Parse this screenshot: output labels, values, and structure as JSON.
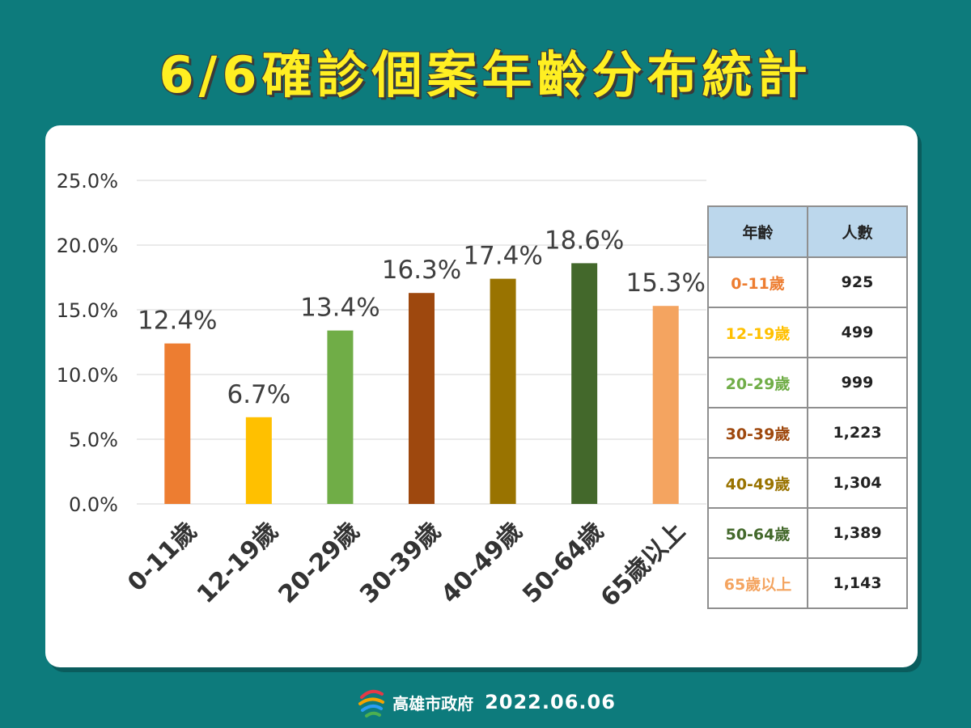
{
  "title": "6/6確診個案年齡分布統計",
  "footer": {
    "org": "高雄市政府",
    "date": "2022.06.06"
  },
  "table": {
    "headers": [
      "年齡",
      "人數"
    ],
    "rows": [
      {
        "label": "0-11歲",
        "count": "925",
        "color": "#ed7d31"
      },
      {
        "label": "12-19歲",
        "count": "499",
        "color": "#ffc000"
      },
      {
        "label": "20-29歲",
        "count": "999",
        "color": "#70ad47"
      },
      {
        "label": "30-39歲",
        "count": "1,223",
        "color": "#9e480e"
      },
      {
        "label": "40-49歲",
        "count": "1,304",
        "color": "#997300"
      },
      {
        "label": "50-64歲",
        "count": "1,389",
        "color": "#43682b"
      },
      {
        "label": "65歲以上",
        "count": "1,143",
        "color": "#f4a460"
      }
    ]
  },
  "chart_data": {
    "type": "bar",
    "categories": [
      "0-11歲",
      "12-19歲",
      "20-29歲",
      "30-39歲",
      "40-49歲",
      "50-64歲",
      "65歲以上"
    ],
    "values": [
      12.4,
      6.7,
      13.4,
      16.3,
      17.4,
      18.6,
      15.3
    ],
    "data_labels": [
      "12.4%",
      "6.7%",
      "13.4%",
      "16.3%",
      "17.4%",
      "18.6%",
      "15.3%"
    ],
    "colors": [
      "#ed7d31",
      "#ffc000",
      "#70ad47",
      "#9e480e",
      "#997300",
      "#43682b",
      "#f4a460"
    ],
    "y_ticks": [
      "0.0%",
      "5.0%",
      "10.0%",
      "15.0%",
      "20.0%",
      "25.0%"
    ],
    "ylim": [
      0,
      25
    ],
    "grid": true
  }
}
